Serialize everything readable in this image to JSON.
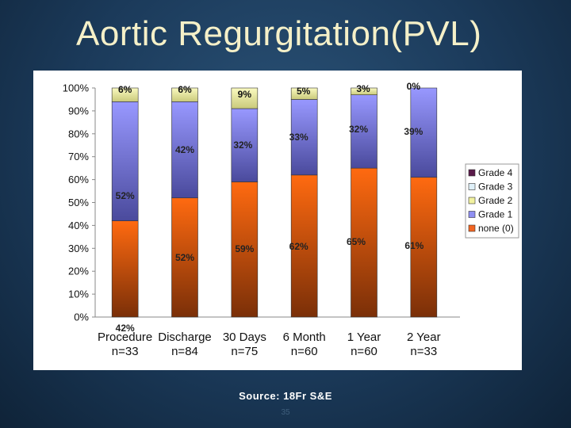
{
  "slide": {
    "title": "Aortic Regurgitation(PVL)",
    "source": "Source: 18Fr S&E",
    "page_number": "35"
  },
  "chart_data": {
    "type": "bar",
    "stacked": true,
    "categories": [
      [
        "Procedure",
        "n=33"
      ],
      [
        "Discharge",
        "n=84"
      ],
      [
        "30 Days",
        "n=75"
      ],
      [
        "6 Month",
        "n=60"
      ],
      [
        "1 Year",
        "n=60"
      ],
      [
        "2 Year",
        "n=33"
      ]
    ],
    "series": [
      {
        "name": "none (0)",
        "color": "#f26522",
        "values": [
          42,
          52,
          59,
          62,
          65,
          61
        ],
        "labels": [
          "42%",
          "52%",
          "59%",
          "62%",
          "65%",
          "61%"
        ]
      },
      {
        "name": "Grade 1",
        "color": "#8f8ff2",
        "values": [
          52,
          42,
          32,
          33,
          32,
          39
        ],
        "labels": [
          "52%",
          "42%",
          "32%",
          "33%",
          "32%",
          "39%"
        ]
      },
      {
        "name": "Grade 2",
        "color": "#f2f2a0",
        "values": [
          6,
          6,
          9,
          5,
          3,
          0
        ],
        "labels": [
          "6%",
          "6%",
          "9%",
          "5%",
          "3%",
          "0%"
        ]
      },
      {
        "name": "Grade 3",
        "color": "#dff0f8",
        "values": [
          0,
          0,
          0,
          0,
          0,
          0
        ],
        "labels": []
      },
      {
        "name": "Grade 4",
        "color": "#5a1a4a",
        "values": [
          0,
          0,
          0,
          0,
          0,
          0
        ],
        "labels": []
      }
    ],
    "legend_order": [
      "Grade 4",
      "Grade 3",
      "Grade 2",
      "Grade 1",
      "none (0)"
    ],
    "y_ticks": [
      "0%",
      "10%",
      "20%",
      "30%",
      "40%",
      "50%",
      "60%",
      "70%",
      "80%",
      "90%",
      "100%"
    ],
    "ylim": [
      0,
      100
    ],
    "legend_position": "right",
    "grid": false
  }
}
